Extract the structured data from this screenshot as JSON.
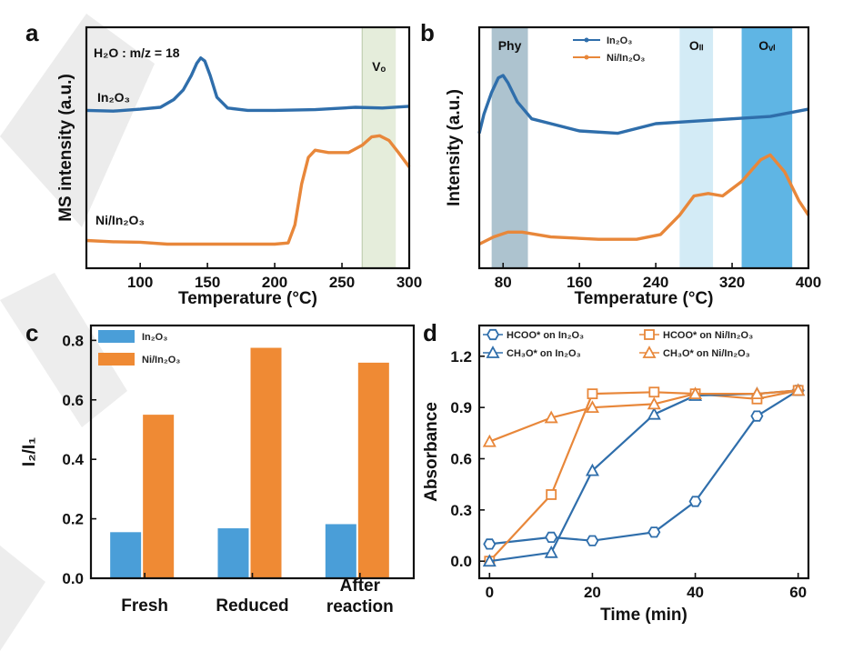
{
  "colors": {
    "blue": "#2f6eab",
    "orange": "#e8873a",
    "bar_blue": "#4a9ed8",
    "bar_orange": "#ef8a34",
    "band_green": "#dfe9d2",
    "band_phy": "#9fb9c7",
    "band_oii": "#cbe7f5",
    "band_ovi": "#43a8df",
    "watermark": "#d5d5d5"
  },
  "chart_data": [
    {
      "id": "a",
      "type": "line",
      "panel_label": "a",
      "xlabel": "Temperature (°C)",
      "ylabel": "MS intensity (a.u.)",
      "xlim": [
        60,
        300
      ],
      "ylim": [
        0,
        1
      ],
      "xticks": [
        100,
        150,
        200,
        250,
        300
      ],
      "title_annotation": "H₂O : m/z = 18",
      "band": {
        "label": "Vₒ",
        "from": 265,
        "to": 290
      },
      "series": [
        {
          "name": "In₂O₃",
          "label_text": "In₂O₃",
          "color_key": "blue",
          "x": [
            60,
            80,
            100,
            115,
            125,
            132,
            138,
            142,
            145,
            148,
            152,
            157,
            165,
            180,
            200,
            230,
            260,
            280,
            300
          ],
          "y": [
            0.655,
            0.652,
            0.66,
            0.668,
            0.7,
            0.74,
            0.8,
            0.85,
            0.873,
            0.86,
            0.8,
            0.71,
            0.665,
            0.655,
            0.655,
            0.658,
            0.668,
            0.665,
            0.672
          ]
        },
        {
          "name": "Ni/In₂O₃",
          "label_text": "Ni/In₂O₃",
          "color_key": "orange",
          "x": [
            60,
            80,
            100,
            120,
            150,
            180,
            200,
            210,
            215,
            220,
            225,
            230,
            240,
            255,
            265,
            272,
            278,
            285,
            292,
            300
          ],
          "y": [
            0.115,
            0.11,
            0.108,
            0.1,
            0.1,
            0.1,
            0.1,
            0.105,
            0.18,
            0.35,
            0.46,
            0.49,
            0.48,
            0.48,
            0.51,
            0.545,
            0.55,
            0.53,
            0.48,
            0.42
          ]
        }
      ]
    },
    {
      "id": "b",
      "type": "line",
      "panel_label": "b",
      "xlabel": "Temperature (°C)",
      "ylabel": "Intensity (a.u.)",
      "xlim": [
        55,
        400
      ],
      "ylim": [
        0,
        1
      ],
      "xticks": [
        80,
        160,
        240,
        320,
        400
      ],
      "bands": [
        {
          "label": "Phy",
          "from": 68,
          "to": 106,
          "color_key": "band_phy"
        },
        {
          "label": "Oₗₗ",
          "from": 265,
          "to": 300,
          "color_key": "band_oii"
        },
        {
          "label": "Oᵥₗ",
          "from": 330,
          "to": 383,
          "color_key": "band_ovi"
        }
      ],
      "series": [
        {
          "name": "In₂O₃",
          "color_key": "blue",
          "x": [
            55,
            60,
            68,
            75,
            80,
            85,
            95,
            110,
            130,
            160,
            200,
            240,
            280,
            320,
            360,
            400
          ],
          "y": [
            0.56,
            0.64,
            0.73,
            0.79,
            0.8,
            0.77,
            0.69,
            0.62,
            0.6,
            0.57,
            0.56,
            0.6,
            0.61,
            0.62,
            0.63,
            0.66
          ]
        },
        {
          "name": "Ni/In₂O₃",
          "color_key": "orange",
          "x": [
            55,
            70,
            85,
            100,
            130,
            180,
            220,
            245,
            265,
            280,
            295,
            310,
            330,
            350,
            360,
            375,
            390,
            400
          ],
          "y": [
            0.1,
            0.13,
            0.15,
            0.15,
            0.13,
            0.12,
            0.12,
            0.14,
            0.22,
            0.3,
            0.31,
            0.3,
            0.36,
            0.45,
            0.47,
            0.4,
            0.28,
            0.22
          ]
        }
      ]
    },
    {
      "id": "c",
      "type": "bar",
      "panel_label": "c",
      "xlabel": "",
      "ylabel": "I₂/I₁",
      "ylim": [
        0,
        0.85
      ],
      "yticks": [
        0.0,
        0.2,
        0.4,
        0.6,
        0.8
      ],
      "ytick_labels": [
        "0.0",
        "0.2",
        "0.4",
        "0.6",
        "0.8"
      ],
      "categories": [
        "Fresh",
        "Reduced",
        "After reaction"
      ],
      "category_lines": [
        [
          "Fresh"
        ],
        [
          "Reduced"
        ],
        [
          "After",
          "reaction"
        ]
      ],
      "series": [
        {
          "name": "In₂O₃",
          "color_key": "bar_blue",
          "values": [
            0.155,
            0.168,
            0.182
          ]
        },
        {
          "name": "Ni/In₂O₃",
          "color_key": "bar_orange",
          "values": [
            0.55,
            0.775,
            0.725
          ]
        }
      ]
    },
    {
      "id": "d",
      "type": "line",
      "panel_label": "d",
      "xlabel": "Time (min)",
      "ylabel": "Absorbance",
      "xlim": [
        -2,
        62
      ],
      "ylim": [
        -0.1,
        1.38
      ],
      "xticks": [
        0,
        20,
        40,
        60
      ],
      "yticks": [
        0.0,
        0.3,
        0.6,
        0.9,
        1.2
      ],
      "ytick_labels": [
        "0.0",
        "0.3",
        "0.6",
        "0.9",
        "1.2"
      ],
      "series": [
        {
          "name": "HCOO* on In₂O₃",
          "color_key": "blue",
          "marker": "hexagon",
          "x": [
            0,
            12,
            20,
            32,
            40,
            52,
            60
          ],
          "y": [
            0.1,
            0.14,
            0.12,
            0.17,
            0.35,
            0.85,
            1.0
          ]
        },
        {
          "name": "HCOO* on Ni/In₂O₃",
          "color_key": "orange",
          "marker": "square",
          "x": [
            0,
            12,
            20,
            32,
            40,
            52,
            60
          ],
          "y": [
            0.0,
            0.39,
            0.98,
            0.99,
            0.98,
            0.95,
            1.0
          ]
        },
        {
          "name": "CH₃O* on In₂O₃",
          "color_key": "blue",
          "marker": "triangle",
          "x": [
            0,
            12,
            20,
            32,
            40,
            52,
            60
          ],
          "y": [
            0.0,
            0.05,
            0.53,
            0.86,
            0.97,
            0.98,
            1.0
          ]
        },
        {
          "name": "CH₃O* on Ni/In₂O₃",
          "color_key": "orange",
          "marker": "triangle",
          "x": [
            0,
            12,
            20,
            32,
            40,
            52,
            60
          ],
          "y": [
            0.7,
            0.84,
            0.9,
            0.92,
            0.98,
            0.98,
            1.0
          ]
        }
      ]
    }
  ]
}
